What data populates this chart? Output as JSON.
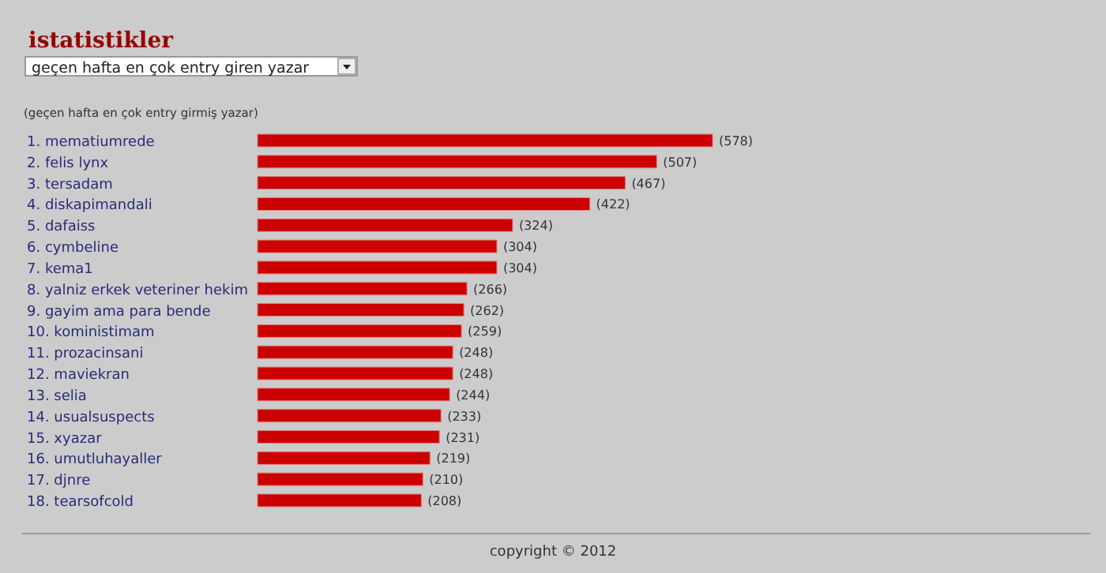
{
  "chart_data": {
    "type": "bar",
    "orientation": "horizontal",
    "title": "istatistikler",
    "subtitle": "geçen hafta en çok entry giren yazar",
    "categories": [
      "1. mematiumrede",
      "2. felis lynx",
      "3. tersadam",
      "4. diskapimandali",
      "5. dafaiss",
      "6. cymbeline",
      "7. kema1",
      "8. yalniz erkek veteriner hekim",
      "9. gayim ama para bende",
      "10. koministimam",
      "11. prozacinsani",
      "12. maviekran",
      "13. selia",
      "14. usualsuspects",
      "15. xyazar",
      "16. umutluhayaller",
      "17. djnre",
      "18. tearsofcold"
    ],
    "values": [
      578,
      507,
      467,
      422,
      324,
      304,
      304,
      266,
      262,
      259,
      248,
      248,
      244,
      233,
      231,
      219,
      210,
      208
    ],
    "value_labels": [
      "(578)",
      "(507)",
      "(467)",
      "(422)",
      "(324)",
      "(304)",
      "(304)",
      "(266)",
      "(262)",
      "(259)",
      "(248)",
      "(248)",
      "(244)",
      "(233)",
      "(231)",
      "(219)",
      "(210)",
      "(208)"
    ],
    "color": "#cc0000",
    "annotations": [
      "(geçen hafta en çok entry girmiş yazar)",
      "copyright © 2012"
    ]
  }
}
